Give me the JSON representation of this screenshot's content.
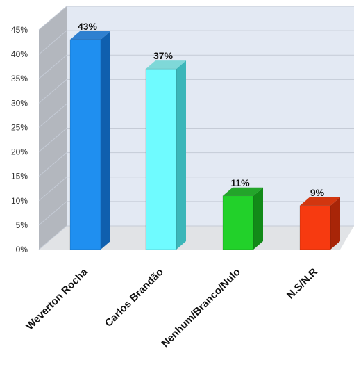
{
  "chart_data": {
    "type": "bar",
    "categories": [
      "Weverton Rocha",
      "Carlos Brandão",
      "Nenhum/Branco/Nulo",
      "N.S/N.R"
    ],
    "values": [
      43,
      37,
      11,
      9
    ],
    "data_labels": [
      "43%",
      "37%",
      "11%",
      "9%"
    ],
    "y_ticks": [
      "0%",
      "5%",
      "10%",
      "15%",
      "20%",
      "25%",
      "30%",
      "35%",
      "40%",
      "45%"
    ],
    "ylim": [
      0,
      45
    ],
    "grid": true,
    "legend": "none",
    "three_d": true,
    "colors": {
      "front": [
        "#1f8ff0",
        "#6ffbff",
        "#22d12a",
        "#f73a10"
      ],
      "side": [
        "#0f5fae",
        "#3bb6b9",
        "#128a18",
        "#a82508"
      ],
      "top": [
        "#2f80d0",
        "#7fd8d8",
        "#23a52a",
        "#d2360f"
      ],
      "back_wall": "#e3e9f3",
      "side_wall": "#b3b7be",
      "floor": "#c9ccd2"
    }
  }
}
